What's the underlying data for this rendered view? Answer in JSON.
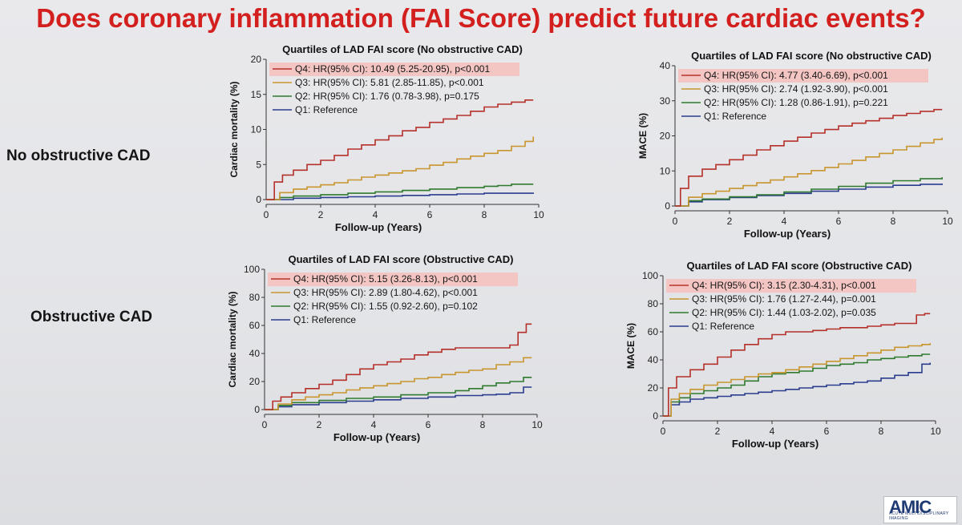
{
  "slide": {
    "title": "Does coronary inflammation (FAI Score) predict future cardiac events?",
    "row_labels": [
      "No obstructive CAD",
      "Obstructive CAD"
    ],
    "logo_text": "AMIC",
    "logo_subtext": "ACUTE MULTIDISCIPLINARY IMAGING"
  },
  "colors": {
    "title": "#d3201e",
    "Q4": "#b5302a",
    "Q3": "#c8952e",
    "Q2": "#2f7a2f",
    "Q1": "#2b3d8f",
    "highlight": "#f4c6c3"
  },
  "chart_data": [
    {
      "type": "line",
      "title": "Quartiles of LAD FAI score (No obstructive CAD)",
      "xlabel": "Follow-up (Years)",
      "ylabel": "Cardiac mortality (%)",
      "xlim": [
        0,
        10
      ],
      "ylim": [
        0,
        20
      ],
      "xticks": [
        0,
        2,
        4,
        6,
        8,
        10
      ],
      "yticks": [
        0,
        5,
        10,
        15,
        20
      ],
      "legend": "top-left",
      "series": [
        {
          "name": "Q4: HR(95% CI): 10.49 (5.25-20.95), p<0.001",
          "key": "Q4",
          "highlight": true,
          "x": [
            0,
            0.3,
            0.6,
            1,
            1.5,
            2,
            2.5,
            3,
            3.5,
            4,
            4.5,
            5,
            5.5,
            6,
            6.5,
            7,
            7.5,
            8,
            8.5,
            9,
            9.5,
            9.8
          ],
          "y": [
            0,
            2.5,
            3.5,
            4.2,
            5.0,
            5.6,
            6.3,
            7.2,
            7.8,
            8.5,
            9.1,
            9.8,
            10.3,
            11.0,
            11.5,
            12.0,
            12.6,
            13.2,
            13.6,
            13.9,
            14.2,
            14.2
          ]
        },
        {
          "name": "Q3: HR(95% CI): 5.81 (2.85-11.85), p<0.001",
          "key": "Q3",
          "highlight": false,
          "x": [
            0,
            0.5,
            1,
            1.5,
            2,
            2.5,
            3,
            3.5,
            4,
            4.5,
            5,
            5.5,
            6,
            6.5,
            7,
            7.5,
            8,
            8.5,
            9,
            9.5,
            9.8
          ],
          "y": [
            0,
            1.0,
            1.5,
            1.8,
            2.1,
            2.4,
            2.8,
            3.2,
            3.5,
            3.8,
            4.1,
            4.4,
            4.9,
            5.3,
            5.8,
            6.2,
            6.6,
            7.0,
            7.6,
            8.3,
            9.0
          ]
        },
        {
          "name": "Q2: HR(95% CI): 1.76 (0.78-3.98), p=0.175",
          "key": "Q2",
          "highlight": false,
          "x": [
            0,
            0.5,
            1,
            2,
            3,
            4,
            5,
            6,
            7,
            8,
            8.5,
            9,
            9.8
          ],
          "y": [
            0,
            0.3,
            0.5,
            0.7,
            0.9,
            1.1,
            1.3,
            1.5,
            1.7,
            1.9,
            2.0,
            2.2,
            2.2
          ]
        },
        {
          "name": "Q1: Reference",
          "key": "Q1",
          "highlight": false,
          "x": [
            0,
            1,
            2,
            3,
            4,
            5,
            6,
            7,
            8,
            9,
            9.8
          ],
          "y": [
            0,
            0.2,
            0.3,
            0.4,
            0.5,
            0.6,
            0.7,
            0.8,
            0.9,
            0.9,
            1.0
          ]
        }
      ]
    },
    {
      "type": "line",
      "title": "Quartiles of LAD FAI score (No obstructive CAD)",
      "xlabel": "Follow-up (Years)",
      "ylabel": "MACE (%)",
      "xlim": [
        0,
        10
      ],
      "ylim": [
        0,
        40
      ],
      "xticks": [
        0,
        2,
        4,
        6,
        8,
        10
      ],
      "yticks": [
        0,
        10,
        20,
        30,
        40
      ],
      "legend": "top-left",
      "series": [
        {
          "name": "Q4: HR(95% CI): 4.77 (3.40-6.69), p<0.001",
          "key": "Q4",
          "highlight": true,
          "x": [
            0,
            0.2,
            0.5,
            1,
            1.5,
            2,
            2.5,
            3,
            3.5,
            4,
            4.5,
            5,
            5.5,
            6,
            6.5,
            7,
            7.5,
            8,
            8.5,
            9,
            9.5,
            9.8
          ],
          "y": [
            0,
            5.0,
            8.5,
            10.5,
            11.8,
            13.2,
            14.5,
            16.0,
            17.2,
            18.5,
            19.6,
            20.8,
            21.8,
            22.8,
            23.6,
            24.3,
            25.0,
            25.8,
            26.4,
            27.0,
            27.5,
            27.5
          ]
        },
        {
          "name": "Q3: HR(95% CI): 2.74 (1.92-3.90), p<0.001",
          "key": "Q3",
          "highlight": false,
          "x": [
            0,
            0.5,
            1,
            1.5,
            2,
            2.5,
            3,
            3.5,
            4,
            4.5,
            5,
            5.5,
            6,
            6.5,
            7,
            7.5,
            8,
            8.5,
            9,
            9.5,
            9.8
          ],
          "y": [
            0,
            2.5,
            3.5,
            4.2,
            5.0,
            5.8,
            6.6,
            7.4,
            8.3,
            9.2,
            10.1,
            11.0,
            12.0,
            13.0,
            14.0,
            15.0,
            16.0,
            17.0,
            18.0,
            19.0,
            19.5
          ]
        },
        {
          "name": "Q2: HR(95% CI): 1.28 (0.86-1.91), p=0.221",
          "key": "Q2",
          "highlight": false,
          "x": [
            0,
            0.5,
            1,
            2,
            3,
            4,
            5,
            6,
            7,
            8,
            9,
            9.8
          ],
          "y": [
            0,
            1.5,
            2.0,
            2.6,
            3.2,
            4.0,
            4.8,
            5.6,
            6.5,
            7.2,
            7.8,
            8.2
          ]
        },
        {
          "name": "Q1: Reference",
          "key": "Q1",
          "highlight": false,
          "x": [
            0,
            0.5,
            1,
            2,
            3,
            4,
            5,
            6,
            7,
            8,
            9,
            9.8
          ],
          "y": [
            0,
            1.2,
            1.8,
            2.4,
            3.0,
            3.6,
            4.2,
            4.8,
            5.4,
            5.9,
            6.2,
            6.4
          ]
        }
      ]
    },
    {
      "type": "line",
      "title": "Quartiles of LAD FAI score (Obstructive CAD)",
      "xlabel": "Follow-up (Years)",
      "ylabel": "Cardiac mortality (%)",
      "xlim": [
        0,
        10
      ],
      "ylim": [
        0,
        100
      ],
      "xticks": [
        0,
        2,
        4,
        6,
        8,
        10
      ],
      "yticks": [
        0,
        20,
        40,
        60,
        80,
        100
      ],
      "legend": "top-left",
      "series": [
        {
          "name": "Q4: HR(95% CI): 5.15 (3.26-8.13), p<0.001",
          "key": "Q4",
          "highlight": true,
          "x": [
            0,
            0.3,
            0.6,
            1,
            1.5,
            2,
            2.5,
            3,
            3.5,
            4,
            4.5,
            5,
            5.5,
            6,
            6.5,
            7,
            7.5,
            8,
            8.5,
            9,
            9.3,
            9.6,
            9.8
          ],
          "y": [
            0,
            6,
            9,
            12,
            15,
            18,
            21,
            25,
            29,
            32,
            34,
            36,
            39,
            41,
            43,
            44,
            44,
            44,
            44,
            46,
            55,
            61,
            61
          ]
        },
        {
          "name": "Q3: HR(95% CI): 2.89 (1.80-4.62), p<0.001",
          "key": "Q3",
          "highlight": false,
          "x": [
            0,
            0.5,
            1,
            1.5,
            2,
            2.5,
            3,
            3.5,
            4,
            4.5,
            5,
            5.5,
            6,
            6.5,
            7,
            7.5,
            8,
            8.5,
            9,
            9.5,
            9.8
          ],
          "y": [
            0,
            4,
            7,
            9,
            10.5,
            12,
            14,
            15.5,
            17,
            18.5,
            20,
            22,
            23,
            25,
            26.5,
            28,
            29,
            32,
            34,
            37,
            37
          ]
        },
        {
          "name": "Q2: HR(95% CI): 1.55 (0.92-2.60), p=0.102",
          "key": "Q2",
          "highlight": false,
          "x": [
            0,
            0.5,
            1,
            2,
            3,
            4,
            5,
            6,
            7,
            7.5,
            8,
            8.5,
            9,
            9.5,
            9.8
          ],
          "y": [
            0,
            3,
            5,
            6.5,
            8,
            9,
            10.5,
            12,
            13.5,
            15,
            17,
            19,
            20,
            23,
            23
          ]
        },
        {
          "name": "Q1: Reference",
          "key": "Q1",
          "highlight": false,
          "x": [
            0,
            0.5,
            1,
            2,
            3,
            4,
            5,
            6,
            7,
            8,
            8.5,
            9,
            9.5,
            9.8
          ],
          "y": [
            0,
            2,
            3.5,
            5,
            6,
            7,
            8,
            9,
            10,
            10.5,
            11,
            12,
            16,
            16
          ]
        }
      ]
    },
    {
      "type": "line",
      "title": "Quartiles of LAD FAI score (Obstructive CAD)",
      "xlabel": "Follow-up (Years)",
      "ylabel": "MACE (%)",
      "xlim": [
        0,
        10
      ],
      "ylim": [
        0,
        100
      ],
      "xticks": [
        0,
        2,
        4,
        6,
        8,
        10
      ],
      "yticks": [
        0,
        20,
        40,
        60,
        80,
        100
      ],
      "legend": "top-left",
      "series": [
        {
          "name": "Q4: HR(95% CI): 3.15 (2.30-4.31), p<0.001",
          "key": "Q4",
          "highlight": true,
          "x": [
            0,
            0.2,
            0.5,
            1,
            1.5,
            2,
            2.5,
            3,
            3.5,
            4,
            4.5,
            5,
            5.5,
            6,
            6.5,
            7,
            7.5,
            8,
            8.5,
            9,
            9.3,
            9.6,
            9.8
          ],
          "y": [
            0,
            20,
            28,
            33,
            37,
            42,
            47,
            51,
            55,
            58,
            60,
            60,
            61,
            62,
            63,
            63,
            64,
            65,
            66,
            66,
            72,
            73,
            73
          ]
        },
        {
          "name": "Q3: HR(95% CI): 1.76 (1.27-2.44), p=0.001",
          "key": "Q3",
          "highlight": false,
          "x": [
            0,
            0.3,
            0.6,
            1,
            1.5,
            2,
            2.5,
            3,
            3.5,
            4,
            4.5,
            5,
            5.5,
            6,
            6.5,
            7,
            7.5,
            8,
            8.5,
            9,
            9.5,
            9.8
          ],
          "y": [
            0,
            12,
            16,
            19,
            22,
            24,
            26,
            28,
            30,
            31,
            33,
            35,
            37,
            39,
            41,
            43,
            45,
            47,
            49,
            50,
            51,
            52
          ]
        },
        {
          "name": "Q2: HR(95% CI): 1.44 (1.03-2.02), p=0.035",
          "key": "Q2",
          "highlight": false,
          "x": [
            0,
            0.3,
            0.6,
            1,
            1.5,
            2,
            2.5,
            3,
            3.5,
            4,
            4.5,
            5,
            5.5,
            6,
            6.5,
            7,
            7.5,
            8,
            8.5,
            9,
            9.5,
            9.8
          ],
          "y": [
            0,
            10,
            13,
            16,
            18,
            20,
            22,
            25,
            28,
            30,
            31,
            32,
            34,
            36,
            37,
            38,
            40,
            41,
            42,
            43,
            44,
            44
          ]
        },
        {
          "name": "Q1: Reference",
          "key": "Q1",
          "highlight": false,
          "x": [
            0,
            0.3,
            0.6,
            1,
            1.5,
            2,
            2.5,
            3,
            3.5,
            4,
            4.5,
            5,
            5.5,
            6,
            6.5,
            7,
            7.5,
            8,
            8.5,
            9,
            9.5,
            9.8
          ],
          "y": [
            0,
            8,
            10,
            12,
            13,
            14,
            15,
            16,
            17,
            18,
            19,
            20,
            21,
            22,
            23,
            24,
            25,
            27,
            29,
            31,
            37,
            38
          ]
        }
      ]
    }
  ]
}
